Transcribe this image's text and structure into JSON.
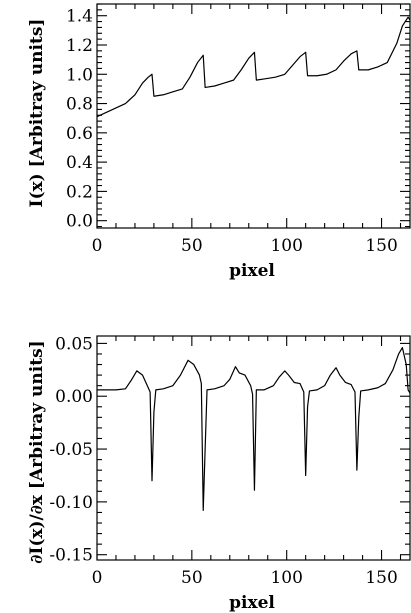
{
  "chart_data": [
    {
      "type": "line",
      "xlabel": "pixel",
      "ylabel": "I(x)  [Arbitray units]",
      "xlim": [
        0,
        165
      ],
      "ylim": [
        -0.05,
        1.48
      ],
      "xticks": [
        0,
        50,
        100,
        150
      ],
      "xtick_labels": [
        "0",
        "50",
        "100",
        "150"
      ],
      "yticks": [
        0.0,
        0.2,
        0.4,
        0.6,
        0.8,
        1.0,
        1.2,
        1.4
      ],
      "ytick_labels": [
        "0.0",
        "0.2",
        "0.4",
        "0.6",
        "0.8",
        "1.0",
        "1.2",
        "1.4"
      ],
      "grid": false,
      "series": [
        {
          "x": [
            0,
            5,
            10,
            15,
            20,
            24,
            27,
            29,
            30,
            35,
            40,
            45,
            49,
            53,
            56,
            57,
            62,
            67,
            72,
            76,
            80,
            83,
            84,
            89,
            94,
            99,
            103,
            107,
            110,
            111,
            116,
            121,
            126,
            130,
            134,
            137,
            138,
            143,
            148,
            153,
            158,
            161,
            164,
            165
          ],
          "y": [
            0.71,
            0.74,
            0.77,
            0.8,
            0.86,
            0.94,
            0.98,
            1.0,
            0.85,
            0.86,
            0.88,
            0.9,
            0.98,
            1.08,
            1.13,
            0.91,
            0.92,
            0.94,
            0.96,
            1.03,
            1.11,
            1.15,
            0.96,
            0.97,
            0.98,
            1.0,
            1.06,
            1.12,
            1.15,
            0.99,
            0.99,
            1.0,
            1.03,
            1.09,
            1.14,
            1.16,
            1.03,
            1.03,
            1.05,
            1.08,
            1.21,
            1.33,
            1.39,
            1.37
          ]
        }
      ]
    },
    {
      "type": "line",
      "xlabel": "pixel",
      "ylabel": "∂I(x)/∂x  [Arbitray units]",
      "xlim": [
        0,
        165
      ],
      "ylim": [
        -0.155,
        0.057
      ],
      "xticks": [
        0,
        50,
        100,
        150
      ],
      "xtick_labels": [
        "0",
        "50",
        "100",
        "150"
      ],
      "yticks": [
        -0.15,
        -0.1,
        -0.05,
        0.0,
        0.05
      ],
      "ytick_labels": [
        "-0.15",
        "-0.10",
        "-0.05",
        "0.00",
        "0.05"
      ],
      "grid": false,
      "series": [
        {
          "x": [
            0,
            5,
            10,
            15,
            18,
            21,
            24,
            26,
            28,
            29,
            30,
            31,
            35,
            40,
            44,
            48,
            51,
            54,
            55,
            56,
            57,
            58,
            62,
            67,
            70,
            73,
            75,
            78,
            81,
            82,
            83,
            84,
            88,
            93,
            96,
            99,
            101,
            104,
            107,
            109,
            110,
            111,
            112,
            116,
            120,
            123,
            126,
            128,
            131,
            134,
            136,
            137,
            138,
            139,
            143,
            148,
            152,
            156,
            159,
            161,
            163,
            164,
            165
          ],
          "y": [
            0.006,
            0.006,
            0.006,
            0.007,
            0.015,
            0.024,
            0.02,
            0.012,
            0.004,
            -0.08,
            -0.015,
            0.006,
            0.007,
            0.01,
            0.02,
            0.034,
            0.03,
            0.02,
            0.012,
            -0.108,
            -0.05,
            0.006,
            0.007,
            0.01,
            0.016,
            0.028,
            0.022,
            0.02,
            0.01,
            0.002,
            -0.089,
            0.006,
            0.006,
            0.01,
            0.018,
            0.024,
            0.02,
            0.013,
            0.012,
            0.004,
            -0.075,
            -0.01,
            0.005,
            0.006,
            0.01,
            0.02,
            0.027,
            0.02,
            0.013,
            0.011,
            0.004,
            -0.07,
            -0.02,
            0.005,
            0.006,
            0.008,
            0.012,
            0.025,
            0.04,
            0.046,
            0.03,
            0.006,
            0.003
          ]
        }
      ]
    }
  ]
}
